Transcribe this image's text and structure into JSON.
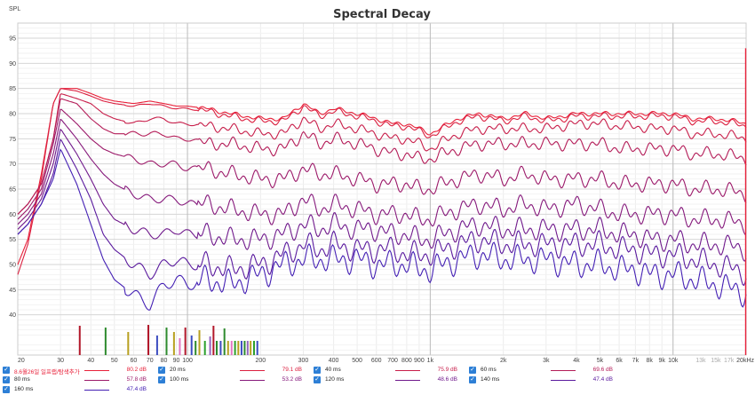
{
  "chart_data": {
    "type": "line",
    "title": "Spectral Decay",
    "ylabel": "SPL",
    "xlabel": "",
    "x_scale": "log",
    "xlim": [
      20,
      20000
    ],
    "ylim": [
      32,
      98
    ],
    "grid": true,
    "y_ticks": [
      40,
      45,
      50,
      55,
      60,
      65,
      70,
      75,
      80,
      85,
      90,
      95
    ],
    "x_ticks": [
      {
        "v": 20,
        "t": "20"
      },
      {
        "v": 30,
        "t": "30"
      },
      {
        "v": 40,
        "t": "40"
      },
      {
        "v": 50,
        "t": "50"
      },
      {
        "v": 60,
        "t": "60"
      },
      {
        "v": 70,
        "t": "70"
      },
      {
        "v": 80,
        "t": "80"
      },
      {
        "v": 90,
        "t": "90"
      },
      {
        "v": 100,
        "t": "100"
      },
      {
        "v": 200,
        "t": "200"
      },
      {
        "v": 300,
        "t": "300"
      },
      {
        "v": 400,
        "t": "400"
      },
      {
        "v": 500,
        "t": "500"
      },
      {
        "v": 600,
        "t": "600"
      },
      {
        "v": 700,
        "t": "700"
      },
      {
        "v": 800,
        "t": "800"
      },
      {
        "v": 900,
        "t": "900"
      },
      {
        "v": 1000,
        "t": "1k"
      },
      {
        "v": 2000,
        "t": "2k"
      },
      {
        "v": 3000,
        "t": "3k"
      },
      {
        "v": 4000,
        "t": "4k"
      },
      {
        "v": 5000,
        "t": "5k"
      },
      {
        "v": 6000,
        "t": "6k"
      },
      {
        "v": 7000,
        "t": "7k"
      },
      {
        "v": 8000,
        "t": "8k"
      },
      {
        "v": 9000,
        "t": "9k"
      },
      {
        "v": 10000,
        "t": "10k"
      },
      {
        "v": 13000,
        "t": "13k",
        "faint": true
      },
      {
        "v": 15000,
        "t": "15k",
        "faint": true
      },
      {
        "v": 17000,
        "t": "17k",
        "faint": true
      },
      {
        "v": 20000,
        "t": "20kHz"
      }
    ],
    "x": [
      20,
      22,
      25,
      28,
      30,
      35,
      40,
      45,
      50,
      60,
      70,
      80,
      90,
      100,
      120,
      150,
      200,
      250,
      300,
      350,
      400,
      500,
      600,
      700,
      800,
      900,
      1000,
      1300,
      1600,
      2000,
      2500,
      3000,
      4000,
      5000,
      6000,
      7000,
      8000,
      10000,
      12000,
      15000,
      18000,
      20000
    ],
    "series": [
      {
        "name": "8.6월26일 일프랩/탐색추가",
        "color": "#e8213a",
        "legend_value": "80.2 dB",
        "values": [
          50,
          55,
          68,
          82,
          85,
          85,
          84,
          83,
          82.5,
          82,
          82.5,
          82,
          81.5,
          81.5,
          81,
          80,
          79,
          79,
          82,
          80,
          81,
          80,
          79,
          78,
          78,
          77,
          76,
          79,
          80,
          79,
          80,
          79,
          80,
          80,
          80,
          80,
          80,
          80,
          79,
          79,
          78.5,
          78
        ]
      },
      {
        "name": "20 ms",
        "color": "#dc2040",
        "legend_value": "79.1 dB",
        "values": [
          48,
          54,
          67,
          82,
          85,
          84.5,
          83.5,
          82.5,
          82,
          81.5,
          82,
          81.5,
          81,
          81,
          80.5,
          79.5,
          78.5,
          78.5,
          81.5,
          79.5,
          80.5,
          79.5,
          78.5,
          77.5,
          77.5,
          76.5,
          75.5,
          78.5,
          79.5,
          78.5,
          79.5,
          78.5,
          79.5,
          79.5,
          79.5,
          79.5,
          79.5,
          79.5,
          78.5,
          78.5,
          78,
          77.5
        ]
      },
      {
        "name": "40 ms",
        "color": "#c81e4a",
        "legend_value": "75.9 dB",
        "values": [
          60,
          62,
          66,
          75,
          84,
          83,
          82,
          80,
          79,
          78,
          79,
          79,
          78,
          78,
          77.5,
          77,
          76,
          76,
          79,
          77,
          78,
          77,
          76,
          75,
          75,
          74,
          73,
          76,
          77,
          77,
          77,
          77,
          78,
          78,
          77.5,
          77.5,
          77,
          77,
          76,
          76,
          75.5,
          75
        ]
      },
      {
        "name": "60 ms",
        "color": "#b41c58",
        "legend_value": "69.6 dB",
        "values": [
          60,
          62,
          66,
          75,
          83,
          82,
          79,
          77,
          76,
          76,
          76,
          76,
          75,
          75,
          74,
          74,
          73,
          73,
          76,
          74,
          75,
          74,
          73,
          72,
          72,
          71,
          71,
          73,
          74,
          74,
          74,
          74,
          74,
          74,
          73,
          73,
          73,
          73,
          72,
          72,
          71.5,
          71
        ]
      },
      {
        "name": "80 ms",
        "color": "#9c1a6a",
        "legend_value": "57.8 dB",
        "values": [
          59,
          61,
          65,
          74,
          81,
          78,
          75,
          73,
          72,
          71,
          70,
          70,
          70,
          69,
          69,
          68,
          67,
          67,
          69,
          68,
          68,
          67,
          66,
          66,
          66,
          65,
          65,
          67,
          68,
          67,
          68,
          67,
          67,
          67,
          66,
          66,
          66,
          66,
          65,
          65,
          64.5,
          64
        ]
      },
      {
        "name": "100 ms",
        "color": "#861a7c",
        "legend_value": "53.2 dB",
        "values": [
          58,
          60,
          64,
          72,
          79,
          75,
          71,
          68,
          66,
          64,
          63,
          63,
          63,
          62,
          62,
          61,
          60,
          60,
          63,
          61,
          62,
          61,
          60,
          60,
          60,
          59,
          59,
          61,
          62,
          61,
          62,
          61,
          62,
          61,
          60,
          60,
          60,
          60,
          59,
          59,
          58.5,
          58
        ]
      },
      {
        "name": "120 ms",
        "color": "#701a8c",
        "legend_value": "48.6 dB",
        "values": [
          57,
          59,
          63,
          70,
          77,
          72,
          67,
          62,
          59,
          57,
          56,
          56,
          57,
          56,
          56,
          55,
          55,
          56,
          58,
          57,
          58,
          57,
          57,
          56,
          56,
          55,
          55,
          57,
          58,
          57,
          57,
          57,
          57,
          57,
          56,
          56,
          55,
          55,
          54,
          54,
          53.5,
          53
        ]
      },
      {
        "name": "140 ms",
        "color": "#5a1a9e",
        "legend_value": "47.4 dB",
        "values": [
          56,
          58,
          62,
          68,
          75,
          69,
          63,
          56,
          53,
          50,
          48,
          50,
          51,
          50,
          50,
          49,
          50,
          52,
          54,
          53,
          54,
          53,
          53,
          53,
          52,
          52,
          52,
          54,
          55,
          54,
          54,
          54,
          54,
          54,
          53,
          53,
          52,
          52,
          51,
          50,
          49,
          48.5
        ]
      },
      {
        "name": "160 ms",
        "color": "#4420b4",
        "legend_value": "47.4 dB",
        "values": [
          56,
          58,
          62,
          67,
          73,
          66,
          58,
          51,
          47,
          44,
          42,
          46,
          47,
          46,
          47,
          46,
          48,
          50,
          51,
          51,
          51,
          51,
          50,
          50,
          50,
          49,
          49,
          51,
          52,
          51,
          51,
          51,
          50,
          50,
          49,
          49,
          48,
          48,
          47,
          46,
          45,
          44.5
        ]
      }
    ],
    "bars": [
      {
        "f": 36,
        "h": 33,
        "c": "#b2182b"
      },
      {
        "f": 46,
        "h": 31,
        "c": "#2e8b2e"
      },
      {
        "f": 57,
        "h": 26,
        "c": "#b8a020"
      },
      {
        "f": 69,
        "h": 34,
        "c": "#b2182b"
      },
      {
        "f": 75,
        "h": 22,
        "c": "#3b4cc0"
      },
      {
        "f": 82,
        "h": 31,
        "c": "#2e8b2e"
      },
      {
        "f": 88,
        "h": 26,
        "c": "#b8a020"
      },
      {
        "f": 93,
        "h": 19,
        "c": "#e377c2"
      },
      {
        "f": 98,
        "h": 31,
        "c": "#b2182b"
      },
      {
        "f": 104,
        "h": 22,
        "c": "#3b4cc0"
      },
      {
        "f": 108,
        "h": 16,
        "c": "#2e8b2e"
      },
      {
        "f": 112,
        "h": 28,
        "c": "#b8a020"
      },
      {
        "f": 118,
        "h": 16,
        "c": "#2ca02c"
      },
      {
        "f": 124,
        "h": 21,
        "c": "#9467bd"
      },
      {
        "f": 128,
        "h": 33,
        "c": "#b2182b"
      },
      {
        "f": 132,
        "h": 16,
        "c": "#2e8b2e"
      },
      {
        "f": 137,
        "h": 16,
        "c": "#3b4cc0"
      },
      {
        "f": 142,
        "h": 30,
        "c": "#2e8b2e"
      },
      {
        "f": 147,
        "h": 16,
        "c": "#b8a020"
      },
      {
        "f": 152,
        "h": 16,
        "c": "#e377c2"
      },
      {
        "f": 157,
        "h": 16,
        "c": "#2ca02c"
      },
      {
        "f": 162,
        "h": 16,
        "c": "#b8a020"
      },
      {
        "f": 167,
        "h": 16,
        "c": "#3b4cc0"
      },
      {
        "f": 172,
        "h": 16,
        "c": "#2e8b2e"
      },
      {
        "f": 177,
        "h": 16,
        "c": "#9467bd"
      },
      {
        "f": 182,
        "h": 16,
        "c": "#b8a020"
      },
      {
        "f": 188,
        "h": 16,
        "c": "#2ca02c"
      },
      {
        "f": 194,
        "h": 16,
        "c": "#3b4cc0"
      }
    ],
    "legend": {
      "placement": "bottom"
    }
  }
}
